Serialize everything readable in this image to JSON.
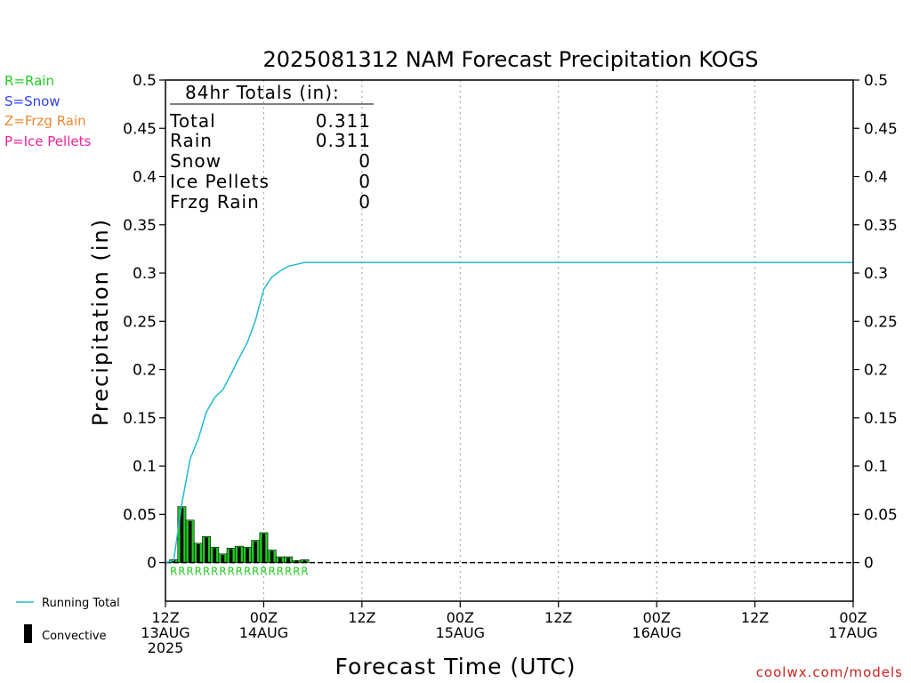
{
  "title": "2025081312 NAM Forecast Precipitation KOGS",
  "ylabel": "Precipitation (in)",
  "xlabel": "Forecast Time (UTC)",
  "footer": "coolwx.com/models",
  "legend_types": [
    {
      "label": "R=Rain",
      "color": "#22cc22"
    },
    {
      "label": "S=Snow",
      "color": "#3344ee"
    },
    {
      "label": "Z=Frzg Rain",
      "color": "#ee8833"
    },
    {
      "label": "P=Ice Pellets",
      "color": "#ee2299"
    }
  ],
  "legend_bottom": {
    "running_total": "Running Total",
    "convective": "Convective"
  },
  "totals": {
    "header": "84hr Totals (in):",
    "rows": [
      {
        "label": "Total",
        "value": "0.311"
      },
      {
        "label": "Rain",
        "value": "0.311"
      },
      {
        "label": "Snow",
        "value": "0"
      },
      {
        "label": "Ice Pellets",
        "value": "0"
      },
      {
        "label": "Frzg Rain",
        "value": "0"
      }
    ]
  },
  "chart_data": {
    "type": "bar",
    "xlim": [
      0,
      84
    ],
    "ylim": [
      -0.04,
      0.5
    ],
    "yticks": [
      "0",
      "0.05",
      "0.1",
      "0.15",
      "0.2",
      "0.25",
      "0.3",
      "0.35",
      "0.4",
      "0.45",
      "0.5"
    ],
    "ytick_values": [
      0,
      0.05,
      0.1,
      0.15,
      0.2,
      0.25,
      0.3,
      0.35,
      0.4,
      0.45,
      0.5
    ],
    "xticks": [
      {
        "hour": 0,
        "lines": [
          "12Z",
          "13AUG",
          "2025"
        ]
      },
      {
        "hour": 12,
        "lines": [
          "00Z",
          "14AUG"
        ]
      },
      {
        "hour": 24,
        "lines": [
          "12Z"
        ]
      },
      {
        "hour": 36,
        "lines": [
          "00Z",
          "15AUG"
        ]
      },
      {
        "hour": 48,
        "lines": [
          "12Z"
        ]
      },
      {
        "hour": 60,
        "lines": [
          "00Z",
          "16AUG"
        ]
      },
      {
        "hour": 72,
        "lines": [
          "12Z"
        ]
      },
      {
        "hour": 84,
        "lines": [
          "00Z",
          "17AUG"
        ]
      }
    ],
    "grid": "vertical dotted",
    "precip_type_labels": "R",
    "series": [
      {
        "name": "Running Total",
        "color": "#22bbcc",
        "type": "line",
        "x": [
          0,
          1,
          2,
          3,
          4,
          5,
          6,
          7,
          8,
          9,
          10,
          11,
          12,
          13,
          14,
          15,
          16,
          17,
          18,
          19,
          20,
          84
        ],
        "y": [
          0,
          0.002,
          0.061,
          0.107,
          0.128,
          0.156,
          0.171,
          0.179,
          0.195,
          0.212,
          0.228,
          0.251,
          0.283,
          0.296,
          0.302,
          0.307,
          0.309,
          0.311,
          0.311,
          0.311,
          0.311,
          0.311
        ]
      },
      {
        "name": "Precipitation",
        "color": "#22cc22",
        "type": "bar",
        "x": [
          1,
          2,
          3,
          4,
          5,
          6,
          7,
          8,
          9,
          10,
          11,
          12,
          13,
          14,
          15,
          16,
          17
        ],
        "values": [
          0.003,
          0.058,
          0.044,
          0.02,
          0.027,
          0.016,
          0.009,
          0.015,
          0.017,
          0.016,
          0.023,
          0.031,
          0.013,
          0.006,
          0.006,
          0.002,
          0.003
        ]
      },
      {
        "name": "Convective",
        "color": "#000000",
        "type": "bar",
        "x": [
          1,
          2,
          3,
          4,
          5,
          6,
          7,
          8,
          9,
          10,
          11,
          12,
          13,
          14,
          15,
          16,
          17
        ],
        "values": [
          0.003,
          0.057,
          0.043,
          0.019,
          0.026,
          0.015,
          0.008,
          0.014,
          0.016,
          0.015,
          0.022,
          0.03,
          0.012,
          0.005,
          0.005,
          0.002,
          0.002
        ]
      }
    ]
  }
}
